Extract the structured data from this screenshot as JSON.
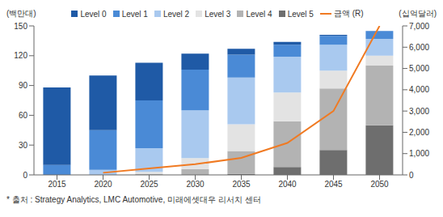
{
  "chart_data": {
    "type": "bar",
    "stacked": true,
    "grid": false,
    "legend": "top",
    "ylabel": "(백만대)",
    "y2label": "(십억달러)",
    "note": "* 출처 : Strategy Analytics, LMC Automotive, 미래에셋대우 리서치 센터",
    "categories": [
      "2015",
      "2020",
      "2025",
      "2030",
      "2035",
      "2040",
      "2045",
      "2050"
    ],
    "ylim": [
      0,
      150
    ],
    "yticks": [
      0,
      30,
      60,
      90,
      120,
      150
    ],
    "y2lim": [
      0,
      7000
    ],
    "y2ticks": [
      0,
      {
        "value": 1000,
        "label": "1,000"
      },
      {
        "value": 2000,
        "label": "2,000"
      },
      {
        "value": 3000,
        "label": "3,000"
      },
      {
        "value": 4000,
        "label": "4,000"
      },
      {
        "value": 5000,
        "label": "5,000"
      },
      {
        "value": 6000,
        "label": "6,000"
      },
      {
        "value": 7000,
        "label": "7,000"
      }
    ],
    "series": [
      {
        "name": "Level 0",
        "type": "bar",
        "color": "#1f5aa6",
        "values": [
          78,
          55,
          38,
          16,
          6,
          3,
          1,
          0
        ]
      },
      {
        "name": "Level 1",
        "type": "bar",
        "color": "#4a8ad6",
        "values": [
          10,
          40,
          48,
          41,
          23,
          12,
          9,
          8
        ]
      },
      {
        "name": "Level 2",
        "type": "bar",
        "color": "#a9c9ef",
        "values": [
          0,
          5,
          24,
          48,
          47,
          36,
          26,
          17
        ]
      },
      {
        "name": "Level 3",
        "type": "bar",
        "color": "#e3e3e3",
        "values": [
          0,
          0,
          2,
          11,
          27,
          29,
          18,
          10
        ]
      },
      {
        "name": "Level 4",
        "type": "bar",
        "color": "#b3b3b3",
        "values": [
          0,
          0,
          1,
          6,
          23,
          46,
          62,
          60
        ]
      },
      {
        "name": "Level 5",
        "type": "bar",
        "color": "#6e6e6e",
        "values": [
          0,
          0,
          0,
          0,
          1,
          8,
          25,
          50
        ]
      },
      {
        "name": "금액 (R)",
        "type": "line",
        "axis": "y2",
        "color": "#f07a22",
        "values": [
          null,
          100,
          300,
          500,
          800,
          1500,
          3000,
          7000
        ]
      }
    ]
  }
}
